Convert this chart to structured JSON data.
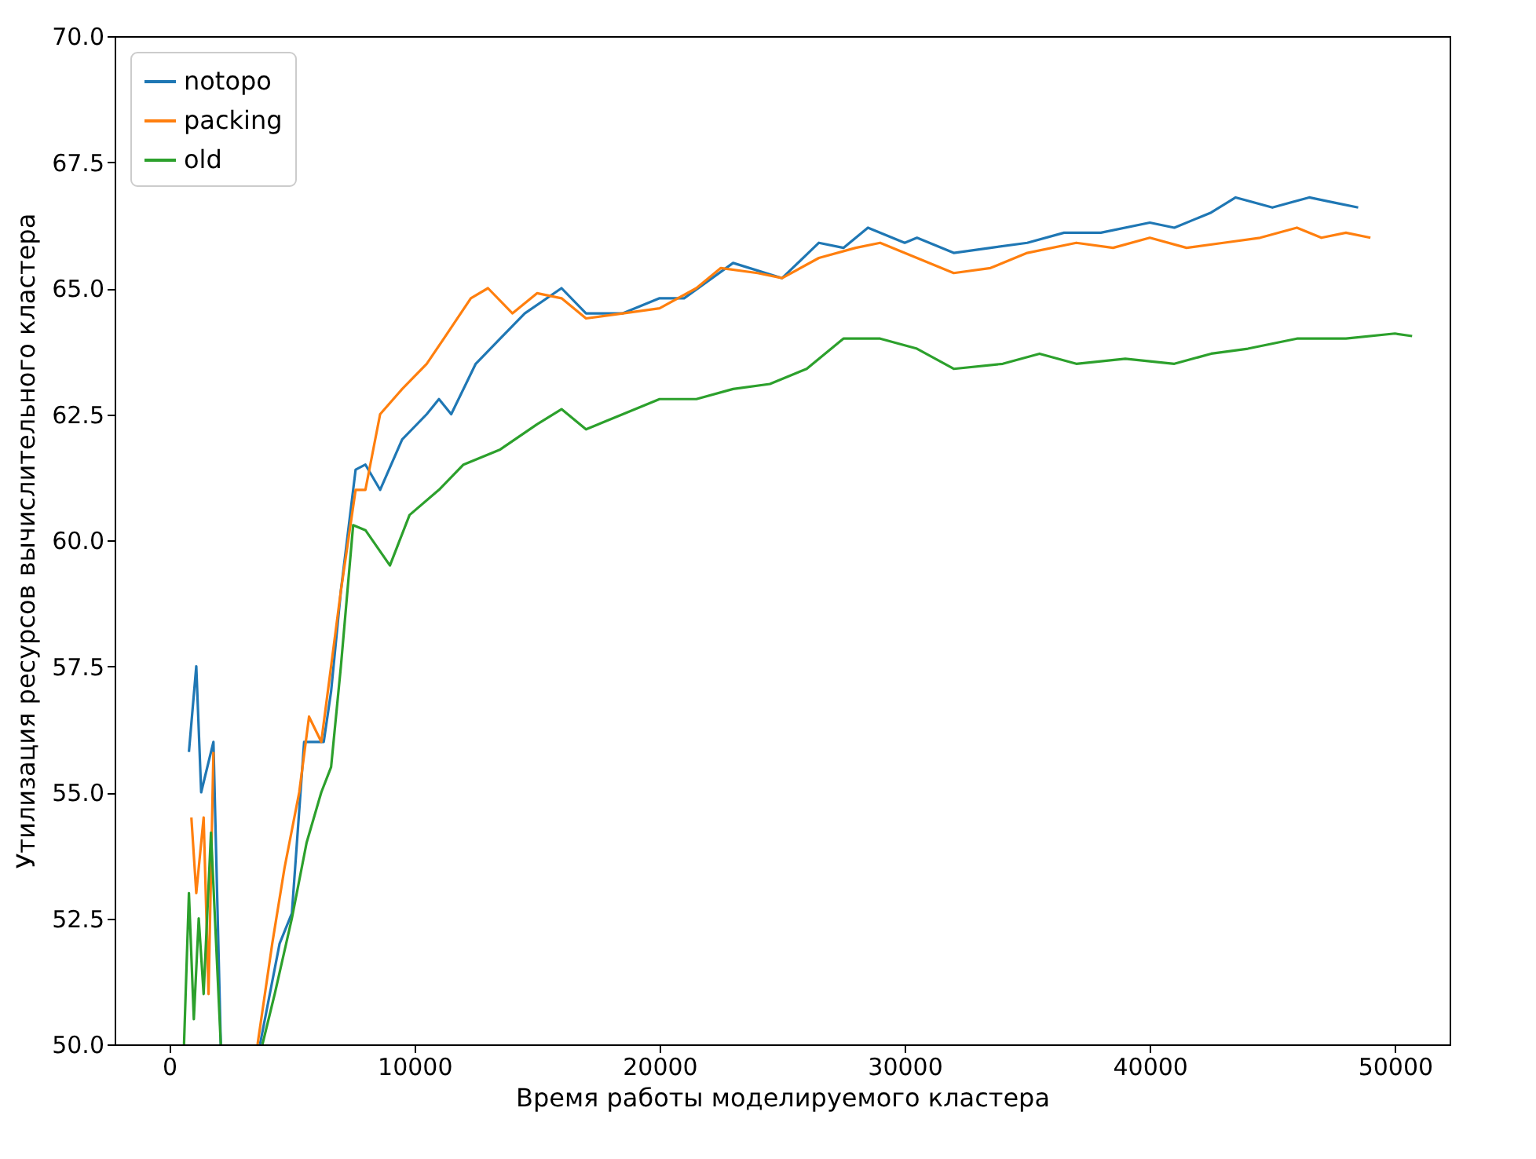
{
  "chart_data": {
    "type": "line",
    "xlabel": "Время работы моделируемого кластера",
    "ylabel": "Утилизация ресурсов вычислительного кластера",
    "xlim": [
      -2230,
      52230
    ],
    "ylim": [
      50,
      70
    ],
    "xticks": [
      0,
      10000,
      20000,
      30000,
      40000,
      50000
    ],
    "yticks": [
      {
        "value": 50,
        "label": "50.0"
      },
      {
        "value": 52.5,
        "label": "52.5"
      },
      {
        "value": 55,
        "label": "55.0"
      },
      {
        "value": 57.5,
        "label": "57.5"
      },
      {
        "value": 60,
        "label": "60.0"
      },
      {
        "value": 62.5,
        "label": "62.5"
      },
      {
        "value": 65,
        "label": "65.0"
      },
      {
        "value": 67.5,
        "label": "67.5"
      },
      {
        "value": 70,
        "label": "70.0"
      }
    ],
    "grid": false,
    "legend": "top left",
    "line_style": "solid",
    "series": [
      {
        "name": "notopo",
        "color": "#1f77b4",
        "x": [
          800,
          1100,
          1300,
          1800,
          2100,
          2900,
          3700,
          4500,
          5000,
          5500,
          6300,
          6600,
          7000,
          7600,
          8000,
          8600,
          9500,
          10500,
          11000,
          11500,
          12500,
          13500,
          14500,
          16000,
          17000,
          18500,
          20000,
          21000,
          23000,
          25000,
          26500,
          27500,
          28500,
          30000,
          30500,
          32000,
          33500,
          35000,
          36500,
          38000,
          40000,
          41000,
          42500,
          43500,
          45000,
          46500,
          47500,
          48500
        ],
        "values": [
          55.8,
          57.5,
          55,
          56,
          50,
          null,
          50,
          52,
          52.6,
          56,
          56,
          57,
          59,
          61.4,
          61.5,
          61,
          62,
          62.5,
          62.8,
          62.5,
          63.5,
          64,
          64.5,
          65,
          64.5,
          64.5,
          64.8,
          64.8,
          65.5,
          65.2,
          65.9,
          65.8,
          66.2,
          65.9,
          66,
          65.7,
          65.8,
          65.9,
          66.1,
          66.1,
          66.3,
          66.2,
          66.5,
          66.8,
          66.6,
          66.8,
          66.7,
          66.6
        ]
      },
      {
        "name": "packing",
        "color": "#ff7f0e",
        "x": [
          900,
          1100,
          1400,
          1600,
          1800,
          2900,
          3600,
          4200,
          4700,
          5300,
          5700,
          6200,
          6600,
          7000,
          7600,
          8000,
          8600,
          9500,
          10500,
          11200,
          12300,
          13000,
          14000,
          15000,
          16000,
          17000,
          18500,
          20000,
          21500,
          22500,
          24000,
          25000,
          26500,
          28000,
          29000,
          30500,
          32000,
          33500,
          35000,
          37000,
          38500,
          40000,
          41500,
          43000,
          44500,
          46000,
          47000,
          48000,
          49000
        ],
        "values": [
          54.5,
          53,
          54.5,
          51,
          55.8,
          null,
          50,
          52,
          53.5,
          55,
          56.5,
          56,
          57.5,
          59,
          61,
          61,
          62.5,
          63,
          63.5,
          64,
          64.8,
          65,
          64.5,
          64.9,
          64.8,
          64.4,
          64.5,
          64.6,
          65,
          65.4,
          65.3,
          65.2,
          65.6,
          65.8,
          65.9,
          65.6,
          65.3,
          65.4,
          65.7,
          65.9,
          65.8,
          66,
          65.8,
          65.9,
          66,
          66.2,
          66,
          66.1,
          66
        ]
      },
      {
        "name": "old",
        "color": "#2ca02c",
        "x": [
          600,
          800,
          1000,
          1200,
          1400,
          1700,
          2100,
          2900,
          3800,
          4300,
          5000,
          5600,
          6200,
          6600,
          7000,
          7500,
          8000,
          9000,
          9800,
          11000,
          12000,
          13500,
          15000,
          16000,
          17000,
          18500,
          20000,
          21500,
          23000,
          24500,
          26000,
          27500,
          29000,
          30500,
          32000,
          34000,
          35500,
          37000,
          39000,
          41000,
          42500,
          44000,
          46000,
          48000,
          50000,
          50700
        ],
        "values": [
          50,
          53,
          50.5,
          52.5,
          51,
          54.2,
          50,
          null,
          50,
          51,
          52.5,
          54,
          55,
          55.5,
          57.5,
          60.3,
          60.2,
          59.5,
          60.5,
          61,
          61.5,
          61.8,
          62.3,
          62.6,
          62.2,
          62.5,
          62.8,
          62.8,
          63,
          63.1,
          63.4,
          64,
          64,
          63.8,
          63.4,
          63.5,
          63.7,
          63.5,
          63.6,
          63.5,
          63.7,
          63.8,
          64,
          64,
          64.1,
          64.05
        ]
      }
    ]
  }
}
